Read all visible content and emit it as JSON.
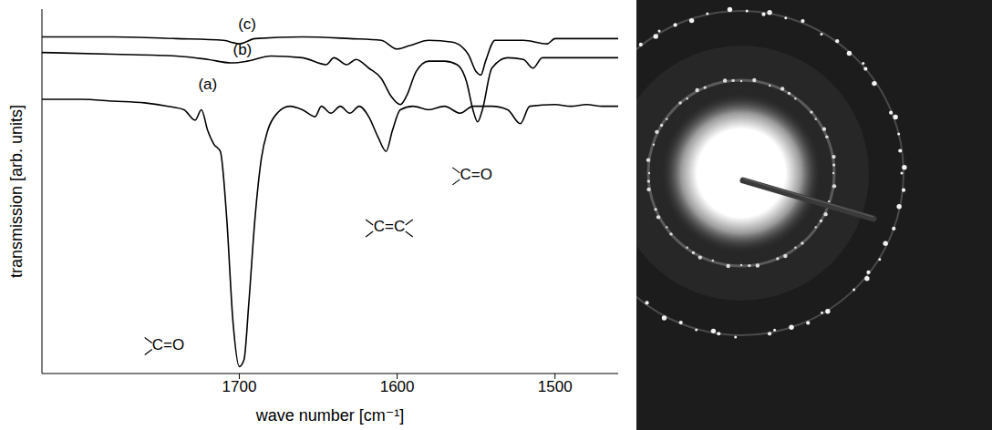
{
  "chart_data": {
    "type": "line",
    "x_label": "wave number [cm⁻¹]",
    "y_label": "transmission [arb. units]",
    "xlim": [
      1825,
      1460
    ],
    "xticks": [
      1700,
      1600,
      1500
    ],
    "ylim": [
      0,
      105
    ],
    "tick_labels": "x",
    "grid": false,
    "series": [
      {
        "color": "#000000",
        "x": [
          1825,
          1800,
          1780,
          1760,
          1745,
          1735,
          1728,
          1724,
          1720,
          1716,
          1712,
          1708,
          1704,
          1700,
          1697,
          1694,
          1690,
          1686,
          1682,
          1676,
          1668,
          1660,
          1652,
          1648,
          1642,
          1636,
          1630,
          1624,
          1618,
          1612,
          1607,
          1603,
          1598,
          1590,
          1580,
          1570,
          1560,
          1552,
          1540,
          1530,
          1522,
          1516,
          1500,
          1490,
          1480,
          1470,
          1460
        ],
        "values": [
          79,
          79,
          78.5,
          78,
          77,
          76,
          73,
          76,
          70,
          66,
          64,
          45,
          15,
          2,
          4,
          20,
          45,
          62,
          70,
          75,
          77,
          76,
          74,
          77,
          75,
          77,
          75,
          77,
          74,
          68,
          64,
          70,
          76,
          77,
          76,
          77,
          75,
          77,
          77,
          76,
          72,
          77,
          77.5,
          77,
          77.5,
          77,
          77
        ]
      },
      {
        "color": "#000000",
        "x": [
          1825,
          1780,
          1740,
          1720,
          1705,
          1695,
          1680,
          1660,
          1645,
          1640,
          1632,
          1626,
          1618,
          1610,
          1604,
          1598,
          1594,
          1588,
          1580,
          1570,
          1562,
          1556,
          1552,
          1549,
          1546,
          1540,
          1530,
          1520,
          1514,
          1508,
          1490,
          1460
        ],
        "values": [
          92.5,
          92,
          91.5,
          90.5,
          89.5,
          90,
          91.5,
          91,
          89,
          91,
          89,
          90.5,
          88,
          85,
          80,
          77.5,
          80,
          87,
          90,
          90,
          89,
          84,
          76,
          72.5,
          76,
          88,
          91,
          90.5,
          88,
          91,
          91,
          91
        ]
      },
      {
        "color": "#000000",
        "x": [
          1825,
          1780,
          1740,
          1710,
          1700,
          1690,
          1660,
          1630,
          1610,
          1600,
          1592,
          1580,
          1565,
          1555,
          1550,
          1547,
          1544,
          1538,
          1520,
          1505,
          1500,
          1460
        ],
        "values": [
          97,
          97,
          96.5,
          96,
          95,
          96.5,
          97,
          96.5,
          96,
          93.5,
          94.5,
          96,
          95.5,
          92,
          87,
          86,
          90,
          96,
          96,
          95,
          96.5,
          96.5
        ]
      }
    ],
    "annotations": [
      {
        "text": "(a)",
        "x": 1720,
        "y": 83
      },
      {
        "text": "(b)",
        "x": 1698,
        "y": 93
      },
      {
        "text": "(c)",
        "x": 1695,
        "y": 100.5
      },
      {
        "text": "C=O",
        "x": 1745,
        "y": 8
      },
      {
        "text": "C=C",
        "x": 1605,
        "y": 42
      },
      {
        "text": "C=O",
        "x": 1550,
        "y": 57
      }
    ]
  }
}
